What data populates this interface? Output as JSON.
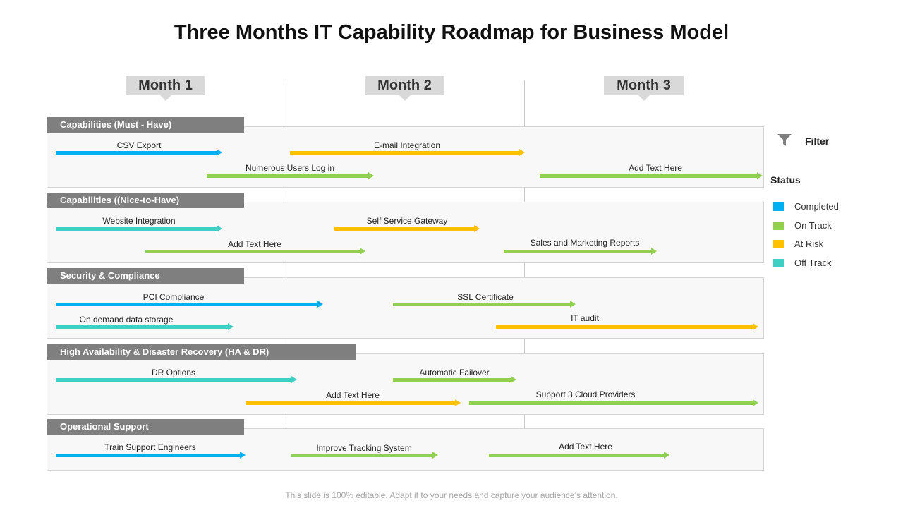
{
  "title": "Three Months IT Capability Roadmap for Business Model",
  "months": [
    "Month 1",
    "Month 2",
    "Month 3"
  ],
  "colors": {
    "completed": "#00b0f0",
    "on_track": "#92d050",
    "at_risk": "#ffc000",
    "off_track": "#3ed1c3",
    "section_header": "#7f7f7f",
    "month_box": "#d9d9d9"
  },
  "sections": [
    {
      "name": "Capabilities (Must  - Have)",
      "tasks": [
        {
          "label": "CSV Export",
          "status": "completed"
        },
        {
          "label": "E-mail Integration",
          "status": "at_risk"
        },
        {
          "label": "Numerous Users Log in",
          "status": "on_track"
        },
        {
          "label": "Add Text Here",
          "status": "on_track"
        }
      ]
    },
    {
      "name": "Capabilities ((Nice-to-Have)",
      "tasks": [
        {
          "label": "Website Integration",
          "status": "off_track"
        },
        {
          "label": "Self Service Gateway",
          "status": "at_risk"
        },
        {
          "label": "Add Text Here",
          "status": "on_track"
        },
        {
          "label": "Sales and Marketing Reports",
          "status": "on_track"
        }
      ]
    },
    {
      "name": "Security & Compliance",
      "tasks": [
        {
          "label": "PCI Compliance",
          "status": "completed"
        },
        {
          "label": "SSL Certificate",
          "status": "on_track"
        },
        {
          "label": "On demand data storage",
          "status": "off_track"
        },
        {
          "label": "IT audit",
          "status": "at_risk"
        }
      ]
    },
    {
      "name": "High Availability & Disaster  Recovery  (HA & DR)",
      "tasks": [
        {
          "label": "DR Options",
          "status": "off_track"
        },
        {
          "label": "Automatic Failover",
          "status": "on_track"
        },
        {
          "label": "Add Text Here",
          "status": "at_risk"
        },
        {
          "label": "Support 3 Cloud Providers",
          "status": "on_track"
        }
      ]
    },
    {
      "name": "Operational Support",
      "tasks": [
        {
          "label": "Train Support Engineers",
          "status": "completed"
        },
        {
          "label": "Improve Tracking System",
          "status": "on_track"
        },
        {
          "label": "Add Text Here",
          "status": "on_track"
        }
      ]
    }
  ],
  "sidebar": {
    "filter_label": "Filter",
    "filter_icon": "filter-icon",
    "status_label": "Status",
    "legend": [
      {
        "label": "Completed",
        "status": "completed"
      },
      {
        "label": "On Track",
        "status": "on_track"
      },
      {
        "label": "At Risk",
        "status": "at_risk"
      },
      {
        "label": "Off Track",
        "status": "off_track"
      }
    ]
  },
  "footer": "This slide is 100% editable. Adapt it to your needs and capture your audience’s attention."
}
